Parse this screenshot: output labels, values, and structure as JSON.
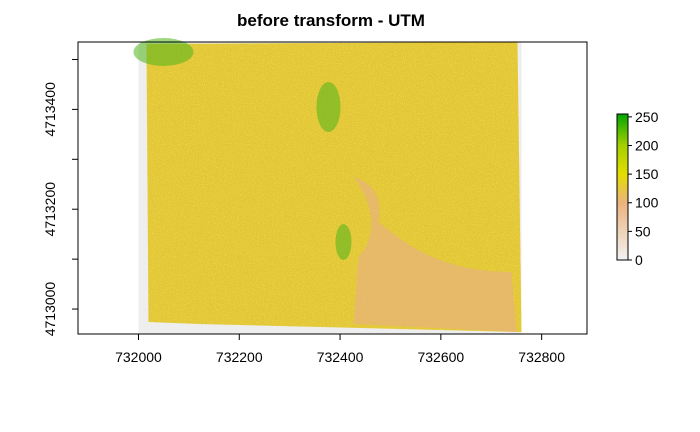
{
  "chart_data": {
    "type": "heatmap",
    "title": "before transform - UTM",
    "xlabel": "",
    "ylabel": "",
    "xlim": [
      731880,
      732890
    ],
    "ylim": [
      4712950,
      4713535
    ],
    "x_ticks": [
      732000,
      732200,
      732400,
      732600,
      732800
    ],
    "y_ticks": [
      4713000,
      4713200,
      4713400
    ],
    "x_tick_labels": [
      "732000",
      "732200",
      "732400",
      "732600",
      "732800"
    ],
    "y_tick_labels": [
      "4713000",
      "4713200",
      "4713400"
    ],
    "extent": {
      "xmin": 732000,
      "xmax": 732760,
      "ymin": 4712945,
      "ymax": 4713535
    },
    "color_scale": {
      "min": 0,
      "max": 255,
      "ticks": [
        0,
        50,
        100,
        150,
        200,
        250
      ],
      "tick_labels": [
        "0",
        "50",
        "100",
        "150",
        "200",
        "250"
      ],
      "stops": [
        {
          "value": 0,
          "color": "#f2f2f2"
        },
        {
          "value": 100,
          "color": "#ebb37d"
        },
        {
          "value": 150,
          "color": "#e3de00"
        },
        {
          "value": 200,
          "color": "#a5cf00"
        },
        {
          "value": 255,
          "color": "#00a600"
        }
      ]
    },
    "grid": false,
    "legend_position": "right"
  }
}
